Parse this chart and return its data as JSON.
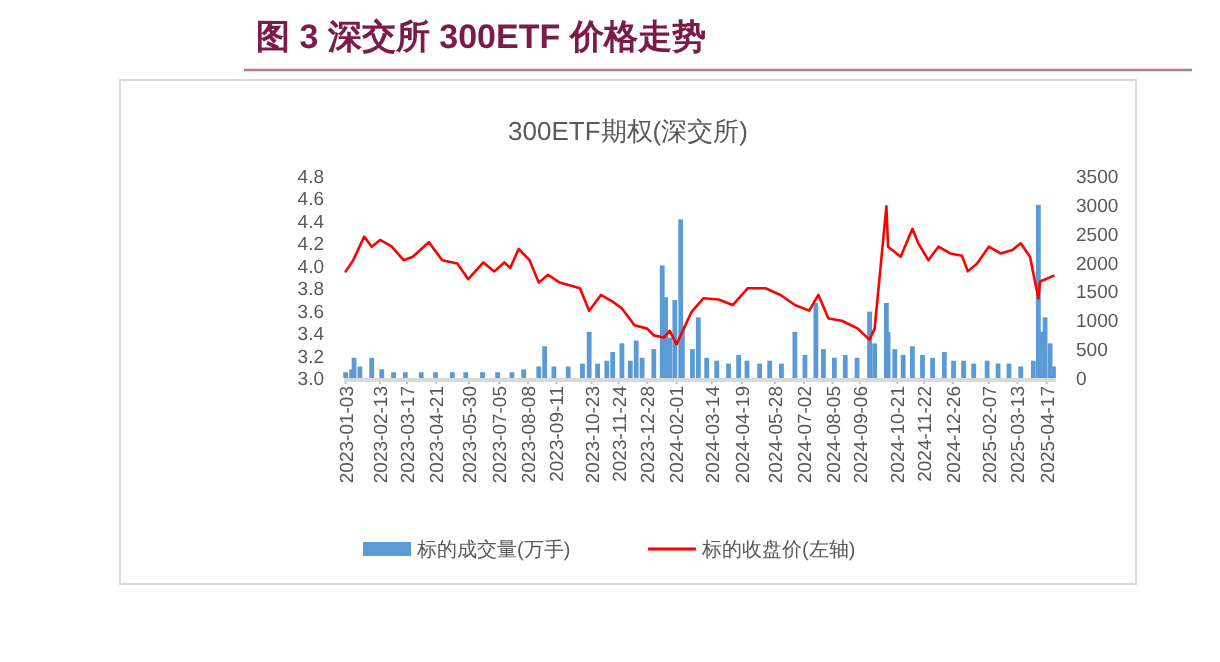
{
  "chart_data": {
    "type": "line",
    "title": "图 3 深交所 300ETF 价格走势",
    "subtitle": "300ETF期权(深交所)",
    "xlim": [
      "2023-01-01",
      "2025-04-28"
    ],
    "xticks": [
      "2023-01-03",
      "2023-02-13",
      "2023-03-17",
      "2023-04-21",
      "2023-05-30",
      "2023-07-05",
      "2023-08-08",
      "2023-09-11",
      "2023-10-23",
      "2023-11-24",
      "2023-12-28",
      "2024-02-01",
      "2024-03-14",
      "2024-04-19",
      "2024-05-28",
      "2024-07-02",
      "2024-08-05",
      "2024-09-06",
      "2024-10-21",
      "2024-11-22",
      "2024-12-26",
      "2025-02-07",
      "2025-03-13",
      "2025-04-17"
    ],
    "ylim": [
      3.0,
      4.8
    ],
    "yticks": [
      {
        "value": 3.0,
        "label": "3.0"
      },
      3.2,
      3.4,
      3.6,
      3.8,
      {
        "value": 4.0,
        "label": "4.0"
      },
      4.2,
      4.4,
      4.6,
      4.8
    ],
    "y2lim": [
      0,
      3500
    ],
    "y2ticks": [
      0,
      500,
      1000,
      1500,
      2000,
      2500,
      3000,
      3500
    ],
    "legend": "bottom",
    "series": [
      {
        "name": "标的成交量(万手)",
        "type": "bar",
        "axis": "y2",
        "color": "#5b9bd5",
        "x": [
          "2023-01-03",
          "2023-01-10",
          "2023-01-13",
          "2023-01-20",
          "2023-02-03",
          "2023-02-15",
          "2023-03-01",
          "2023-03-15",
          "2023-04-03",
          "2023-04-20",
          "2023-05-10",
          "2023-05-26",
          "2023-06-15",
          "2023-07-03",
          "2023-07-20",
          "2023-08-03",
          "2023-08-21",
          "2023-08-28",
          "2023-09-08",
          "2023-09-25",
          "2023-10-12",
          "2023-10-20",
          "2023-10-30",
          "2023-11-10",
          "2023-11-17",
          "2023-11-28",
          "2023-12-08",
          "2023-12-15",
          "2023-12-22",
          "2024-01-05",
          "2024-01-15",
          "2024-01-19",
          "2024-01-24",
          "2024-01-30",
          "2024-02-06",
          "2024-02-08",
          "2024-02-20",
          "2024-02-27",
          "2024-03-08",
          "2024-03-20",
          "2024-04-03",
          "2024-04-15",
          "2024-04-25",
          "2024-05-10",
          "2024-05-22",
          "2024-06-05",
          "2024-06-21",
          "2024-07-03",
          "2024-07-16",
          "2024-07-25",
          "2024-08-07",
          "2024-08-20",
          "2024-09-03",
          "2024-09-18",
          "2024-09-24",
          "2024-10-08",
          "2024-10-10",
          "2024-10-18",
          "2024-10-28",
          "2024-11-08",
          "2024-11-20",
          "2024-12-02",
          "2024-12-16",
          "2024-12-27",
          "2025-01-08",
          "2025-01-20",
          "2025-02-05",
          "2025-02-18",
          "2025-03-03",
          "2025-03-17",
          "2025-04-01",
          "2025-04-07",
          "2025-04-10",
          "2025-04-15",
          "2025-04-21",
          "2025-04-25"
        ],
        "values": [
          100,
          150,
          350,
          200,
          350,
          150,
          100,
          100,
          100,
          100,
          100,
          100,
          100,
          100,
          100,
          150,
          200,
          550,
          200,
          200,
          250,
          800,
          250,
          300,
          450,
          600,
          300,
          650,
          350,
          500,
          1950,
          1400,
          700,
          1350,
          2750,
          900,
          500,
          1050,
          350,
          300,
          250,
          400,
          300,
          250,
          300,
          250,
          800,
          400,
          1300,
          500,
          350,
          400,
          350,
          1150,
          600,
          1300,
          800,
          500,
          400,
          550,
          400,
          350,
          450,
          300,
          300,
          250,
          300,
          250,
          250,
          200,
          300,
          3000,
          800,
          1050,
          600,
          200
        ]
      },
      {
        "name": "标的收盘价(左轴)",
        "axis": "y",
        "color": "#ff0000",
        "x": [
          "2023-01-03",
          "2023-01-12",
          "2023-01-25",
          "2023-02-03",
          "2023-02-13",
          "2023-02-27",
          "2023-03-13",
          "2023-03-24",
          "2023-04-12",
          "2023-04-28",
          "2023-05-16",
          "2023-05-29",
          "2023-06-16",
          "2023-06-29",
          "2023-07-11",
          "2023-07-18",
          "2023-07-28",
          "2023-08-10",
          "2023-08-21",
          "2023-09-01",
          "2023-09-15",
          "2023-10-09",
          "2023-10-20",
          "2023-11-03",
          "2023-11-17",
          "2023-11-28",
          "2023-12-13",
          "2023-12-28",
          "2024-01-05",
          "2024-01-17",
          "2024-01-24",
          "2024-02-01",
          "2024-02-19",
          "2024-03-04",
          "2024-03-22",
          "2024-04-08",
          "2024-04-26",
          "2024-05-17",
          "2024-06-04",
          "2024-06-21",
          "2024-07-08",
          "2024-07-19",
          "2024-07-31",
          "2024-08-16",
          "2024-09-04",
          "2024-09-18",
          "2024-09-24",
          "2024-10-08",
          "2024-10-10",
          "2024-10-25",
          "2024-11-08",
          "2024-11-15",
          "2024-11-27",
          "2024-12-09",
          "2024-12-23",
          "2025-01-06",
          "2025-01-13",
          "2025-01-24",
          "2025-02-07",
          "2025-02-21",
          "2025-03-07",
          "2025-03-17",
          "2025-03-28",
          "2025-04-07",
          "2025-04-09",
          "2025-04-25"
        ],
        "values": [
          3.95,
          4.05,
          4.26,
          4.17,
          4.23,
          4.17,
          4.05,
          4.08,
          4.21,
          4.05,
          4.02,
          3.88,
          4.03,
          3.95,
          4.03,
          3.98,
          4.15,
          4.05,
          3.85,
          3.92,
          3.85,
          3.8,
          3.6,
          3.74,
          3.68,
          3.62,
          3.47,
          3.44,
          3.38,
          3.36,
          3.42,
          3.3,
          3.59,
          3.71,
          3.7,
          3.65,
          3.8,
          3.8,
          3.74,
          3.65,
          3.6,
          3.74,
          3.53,
          3.51,
          3.44,
          3.34,
          3.44,
          4.53,
          4.17,
          4.08,
          4.33,
          4.2,
          4.05,
          4.17,
          4.11,
          4.09,
          3.95,
          4.02,
          4.17,
          4.11,
          4.14,
          4.2,
          4.08,
          3.71,
          3.86,
          3.91
        ]
      }
    ]
  }
}
